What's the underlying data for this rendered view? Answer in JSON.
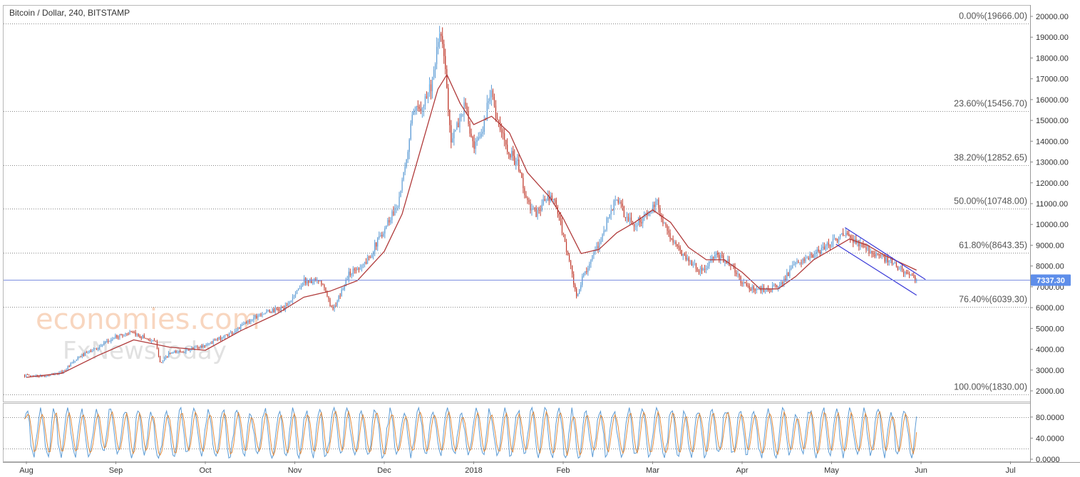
{
  "header": {
    "title": "Bitcoin / Dollar, 240, BITSTAMP"
  },
  "watermark": {
    "line1": "economies.com",
    "line2": "FxNewsToday"
  },
  "colors": {
    "candle_up": "#5b9bd5",
    "candle_down": "#c0392b",
    "moving_average": "#b03a3a",
    "channel": "#3a3ad8",
    "fib_line": "#888888",
    "price_line": "#7d8fe0",
    "price_badge": "#5e8eea",
    "stoch_k": "#5b9bd5",
    "stoch_d": "#e08a3c"
  },
  "chart_data": [
    {
      "type": "candlestick",
      "title": "Bitcoin / Dollar, 240, BITSTAMP",
      "ylim": [
        1400,
        20500
      ],
      "y_ticks": [
        "2000.00",
        "3000.00",
        "4000.00",
        "5000.00",
        "6000.00",
        "7000.00",
        "8000.00",
        "9000.00",
        "10000.00",
        "11000.00",
        "12000.00",
        "13000.00",
        "14000.00",
        "15000.00",
        "16000.00",
        "17000.00",
        "18000.00",
        "19000.00",
        "20000.00"
      ],
      "x_labels": [
        {
          "label": "Aug",
          "month": 0
        },
        {
          "label": "Sep",
          "month": 1
        },
        {
          "label": "Oct",
          "month": 2
        },
        {
          "label": "Nov",
          "month": 3
        },
        {
          "label": "Dec",
          "month": 4
        },
        {
          "label": "2018",
          "month": 5
        },
        {
          "label": "Feb",
          "month": 6
        },
        {
          "label": "Mar",
          "month": 7
        },
        {
          "label": "Apr",
          "month": 8
        },
        {
          "label": "May",
          "month": 9
        },
        {
          "label": "Jun",
          "month": 10
        },
        {
          "label": "Jul",
          "month": 11
        }
      ],
      "current_price": {
        "value": 7337.3,
        "label": "7337.30"
      },
      "fibonacci": [
        {
          "label": "0.00%(19666.00)",
          "value": 19666.0
        },
        {
          "label": "23.60%(15456.70)",
          "value": 15456.7
        },
        {
          "label": "38.20%(12852.65)",
          "value": 12852.65
        },
        {
          "label": "50.00%(10748.00)",
          "value": 10748.0
        },
        {
          "label": "61.80%(8643.35)",
          "value": 8643.35
        },
        {
          "label": "76.40%(6039.30)",
          "value": 6039.3
        },
        {
          "label": "100.00%(1830.00)",
          "value": 1830.0
        }
      ],
      "price_path": [
        [
          -0.02,
          2750
        ],
        [
          0.2,
          2700
        ],
        [
          0.4,
          2900
        ],
        [
          0.6,
          3650
        ],
        [
          0.85,
          4200
        ],
        [
          1.0,
          4600
        ],
        [
          1.15,
          4800
        ],
        [
          1.3,
          4600
        ],
        [
          1.45,
          4300
        ],
        [
          1.5,
          3300
        ],
        [
          1.6,
          3800
        ],
        [
          1.8,
          3950
        ],
        [
          2.0,
          4200
        ],
        [
          2.3,
          4800
        ],
        [
          2.6,
          5700
        ],
        [
          2.9,
          6000
        ],
        [
          3.1,
          7300
        ],
        [
          3.3,
          7200
        ],
        [
          3.4,
          6100
        ],
        [
          3.45,
          6000
        ],
        [
          3.6,
          7600
        ],
        [
          3.8,
          8200
        ],
        [
          4.0,
          9800
        ],
        [
          4.15,
          11000
        ],
        [
          4.25,
          13000
        ],
        [
          4.3,
          15000
        ],
        [
          4.45,
          16000
        ],
        [
          4.55,
          17000
        ],
        [
          4.62,
          19300
        ],
        [
          4.67,
          18000
        ],
        [
          4.75,
          14000
        ],
        [
          4.8,
          14500
        ],
        [
          4.9,
          15800
        ],
        [
          5.0,
          13500
        ],
        [
          5.1,
          14500
        ],
        [
          5.2,
          16800
        ],
        [
          5.25,
          15000
        ],
        [
          5.4,
          13500
        ],
        [
          5.5,
          12800
        ],
        [
          5.6,
          11000
        ],
        [
          5.7,
          10500
        ],
        [
          5.8,
          11200
        ],
        [
          5.9,
          11200
        ],
        [
          6.0,
          9500
        ],
        [
          6.08,
          8000
        ],
        [
          6.15,
          6400
        ],
        [
          6.22,
          7500
        ],
        [
          6.3,
          8200
        ],
        [
          6.4,
          9000
        ],
        [
          6.5,
          10300
        ],
        [
          6.6,
          11300
        ],
        [
          6.7,
          10300
        ],
        [
          6.8,
          10000
        ],
        [
          6.95,
          10500
        ],
        [
          7.05,
          11000
        ],
        [
          7.15,
          9800
        ],
        [
          7.25,
          9000
        ],
        [
          7.4,
          8300
        ],
        [
          7.55,
          7700
        ],
        [
          7.7,
          8500
        ],
        [
          7.85,
          8200
        ],
        [
          8.0,
          7200
        ],
        [
          8.1,
          6900
        ],
        [
          8.25,
          6900
        ],
        [
          8.4,
          7000
        ],
        [
          8.6,
          8100
        ],
        [
          8.8,
          8500
        ],
        [
          8.95,
          9000
        ],
        [
          9.05,
          9300
        ],
        [
          9.15,
          9500
        ],
        [
          9.25,
          9200
        ],
        [
          9.45,
          8700
        ],
        [
          9.65,
          8200
        ],
        [
          9.8,
          7800
        ],
        [
          9.9,
          7400
        ],
        [
          9.95,
          7337
        ]
      ],
      "moving_average_path": [
        [
          0.0,
          2650
        ],
        [
          0.4,
          2850
        ],
        [
          0.8,
          3700
        ],
        [
          1.2,
          4450
        ],
        [
          1.6,
          4100
        ],
        [
          2.0,
          3950
        ],
        [
          2.4,
          4900
        ],
        [
          2.8,
          5700
        ],
        [
          3.1,
          6500
        ],
        [
          3.4,
          6800
        ],
        [
          3.7,
          7300
        ],
        [
          4.0,
          8700
        ],
        [
          4.2,
          10500
        ],
        [
          4.4,
          13500
        ],
        [
          4.6,
          16500
        ],
        [
          4.7,
          17200
        ],
        [
          4.85,
          15800
        ],
        [
          5.0,
          14800
        ],
        [
          5.2,
          15200
        ],
        [
          5.4,
          14400
        ],
        [
          5.6,
          12500
        ],
        [
          5.85,
          11300
        ],
        [
          6.0,
          10300
        ],
        [
          6.2,
          8600
        ],
        [
          6.4,
          8800
        ],
        [
          6.6,
          9600
        ],
        [
          6.8,
          10100
        ],
        [
          7.0,
          10700
        ],
        [
          7.2,
          10100
        ],
        [
          7.4,
          8900
        ],
        [
          7.6,
          8300
        ],
        [
          7.8,
          8300
        ],
        [
          8.0,
          7700
        ],
        [
          8.2,
          6900
        ],
        [
          8.4,
          6900
        ],
        [
          8.6,
          7500
        ],
        [
          8.8,
          8300
        ],
        [
          9.0,
          8800
        ],
        [
          9.2,
          9300
        ],
        [
          9.4,
          9000
        ],
        [
          9.6,
          8500
        ],
        [
          9.8,
          8100
        ],
        [
          9.95,
          7800
        ]
      ],
      "channel_lines": [
        {
          "from": [
            9.15,
            9850
          ],
          "to": [
            10.05,
            7350
          ]
        },
        {
          "from": [
            9.05,
            9050
          ],
          "to": [
            9.95,
            6600
          ]
        }
      ]
    },
    {
      "type": "line",
      "title": "",
      "ylim": [
        -2,
        102
      ],
      "y_ticks": [
        "0.0000",
        "40.0000",
        "80.0000"
      ],
      "levels": [
        20,
        80
      ],
      "series": [
        {
          "role": "k",
          "color": "#5b9bd5"
        },
        {
          "role": "d",
          "color": "#e08a3c"
        }
      ]
    }
  ]
}
